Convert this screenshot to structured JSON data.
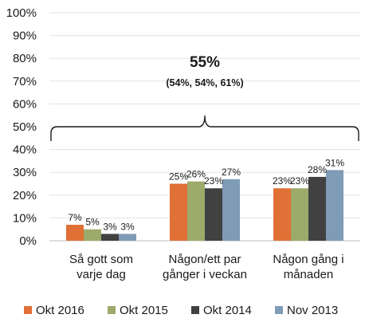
{
  "chart_data": {
    "type": "bar",
    "categories": [
      [
        "Så gott som",
        "varje dag"
      ],
      [
        "Någon/ett par",
        "gånger i veckan"
      ],
      [
        "Någon gång i",
        "månaden"
      ]
    ],
    "series": [
      {
        "name": "Okt 2016",
        "color": "#E07035",
        "values": [
          7,
          25,
          23
        ]
      },
      {
        "name": "Okt 2015",
        "color": "#9CAA6B",
        "values": [
          5,
          26,
          23
        ]
      },
      {
        "name": "Okt 2014",
        "color": "#414141",
        "values": [
          3,
          23,
          28
        ]
      },
      {
        "name": "Nov 2013",
        "color": "#7F9BB5",
        "values": [
          3,
          27,
          31
        ]
      }
    ],
    "data_labels": [
      [
        "7%",
        "25%",
        "23%"
      ],
      [
        "5%",
        "26%",
        "23%"
      ],
      [
        "3%",
        "23%",
        "28%"
      ],
      [
        "3%",
        "27%",
        "31%"
      ]
    ],
    "ylim": [
      0,
      100
    ],
    "yticks": [
      0,
      10,
      20,
      30,
      40,
      50,
      60,
      70,
      80,
      90,
      100
    ],
    "ytick_labels": [
      "0%",
      "10%",
      "20%",
      "30%",
      "40%",
      "50%",
      "60%",
      "70%",
      "80%",
      "90%",
      "100%"
    ],
    "grid": true,
    "legend_position": "bottom",
    "annotation": {
      "main": "55%",
      "sub": "(54%, 54%, 61%)",
      "brace_level": 50
    }
  }
}
